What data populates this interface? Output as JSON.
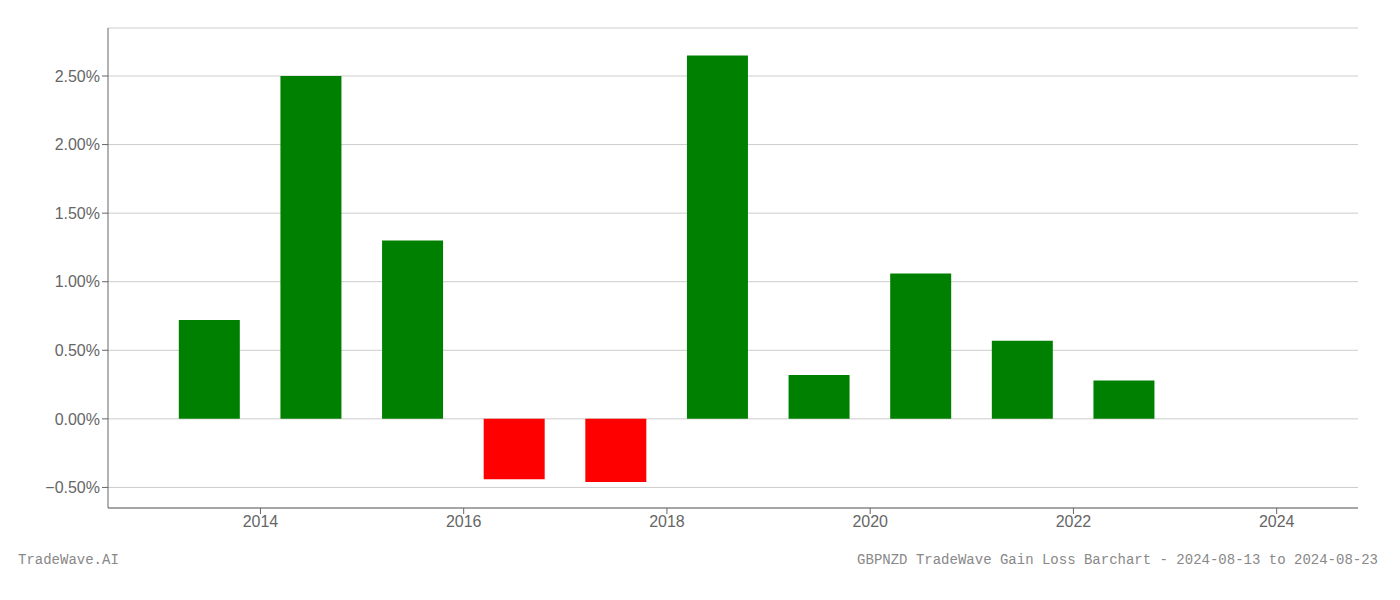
{
  "chart_data": {
    "type": "bar",
    "x": [
      2013.5,
      2014.5,
      2015.5,
      2016.5,
      2017.5,
      2018.5,
      2019.5,
      2020.5,
      2021.5,
      2022.5
    ],
    "values": [
      0.72,
      2.5,
      1.3,
      -0.44,
      -0.46,
      2.65,
      0.32,
      1.06,
      0.57,
      0.28
    ],
    "colors": [
      "#008000",
      "#008000",
      "#008000",
      "#ff0000",
      "#ff0000",
      "#008000",
      "#008000",
      "#008000",
      "#008000",
      "#008000"
    ],
    "xlim": [
      2012.5,
      2024.8
    ],
    "xticks": [
      2014,
      2016,
      2018,
      2020,
      2022,
      2024
    ],
    "ylim": [
      -0.65,
      2.85
    ],
    "yticks": [
      {
        "value": -0.5,
        "label": "−0.50%"
      },
      {
        "value": 0.0,
        "label": "0.00%"
      },
      {
        "value": 0.5,
        "label": "0.50%"
      },
      {
        "value": 1.0,
        "label": "1.00%"
      },
      {
        "value": 1.5,
        "label": "1.50%"
      },
      {
        "value": 2.0,
        "label": "2.00%"
      },
      {
        "value": 2.5,
        "label": "2.50%"
      }
    ],
    "grid": true,
    "annotations": [
      "TradeWave.AI",
      "GBPNZD TradeWave Gain Loss Barchart - 2024-08-13 to 2024-08-23"
    ]
  }
}
